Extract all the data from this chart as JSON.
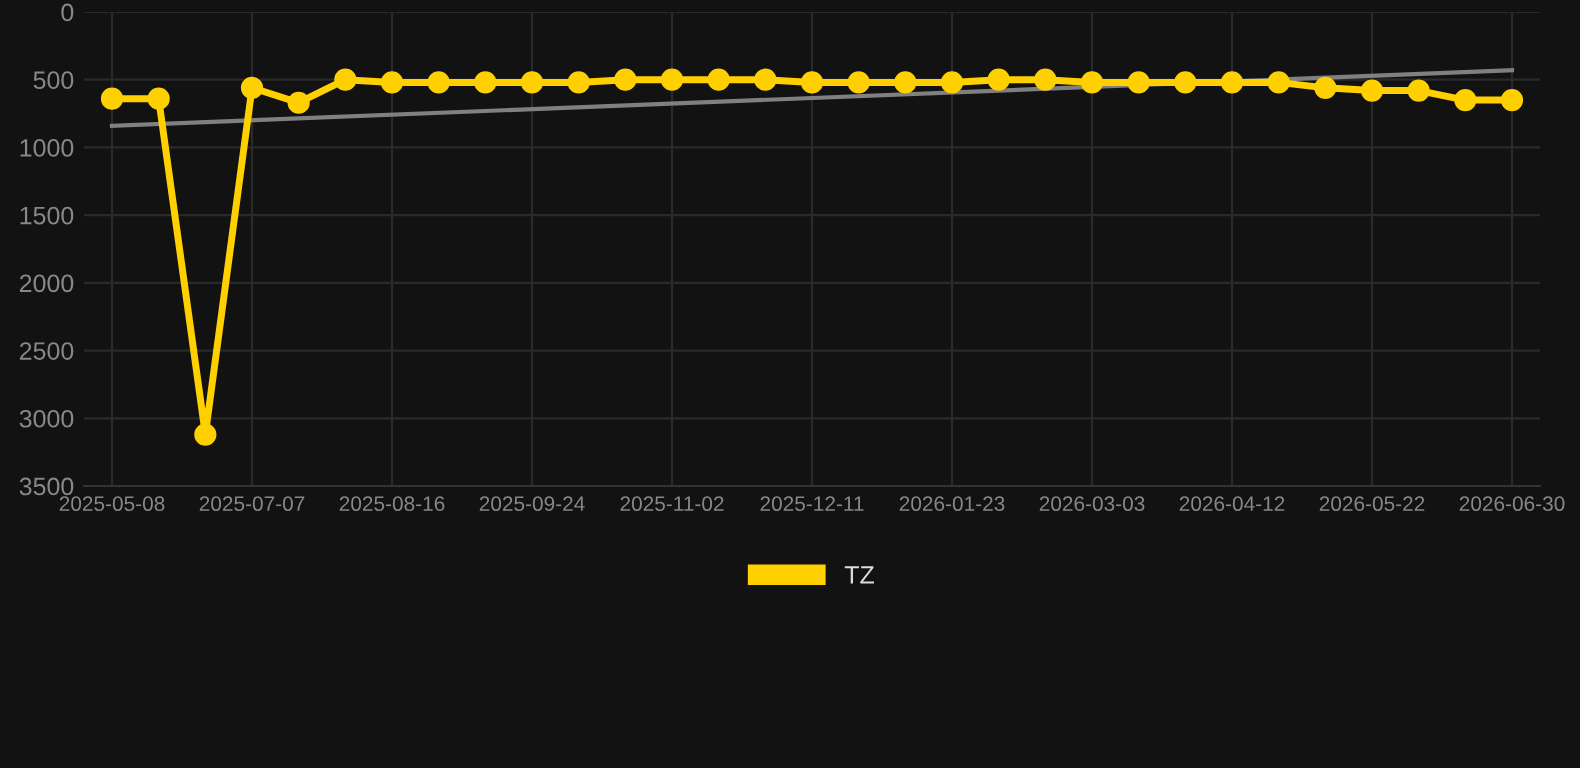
{
  "chart_data": {
    "type": "line",
    "categories": [
      "2025-05-08",
      null,
      null,
      "2025-07-07",
      null,
      null,
      "2025-08-16",
      null,
      null,
      "2025-09-24",
      null,
      null,
      "2025-11-02",
      null,
      null,
      "2025-12-11",
      null,
      null,
      "2026-01-23",
      null,
      null,
      "2026-03-03",
      null,
      null,
      "2026-04-12",
      null,
      null,
      "2026-05-22",
      null,
      null,
      "2026-06-30"
    ],
    "series": [
      {
        "name": "TZ",
        "color": "#ffd000",
        "marker": "circle",
        "values": [
          640,
          640,
          3120,
          560,
          670,
          500,
          520,
          520,
          520,
          520,
          520,
          500,
          500,
          500,
          500,
          520,
          520,
          520,
          520,
          500,
          500,
          520,
          520,
          520,
          520,
          520,
          560,
          580,
          580,
          650,
          650
        ]
      },
      {
        "type": "line",
        "color": "#808080",
        "marker": "none",
        "values": [
          840,
          null,
          null,
          null,
          null,
          null,
          null,
          null,
          null,
          null,
          null,
          null,
          null,
          null,
          null,
          null,
          null,
          null,
          null,
          null,
          null,
          null,
          null,
          null,
          null,
          null,
          null,
          null,
          null,
          null,
          430
        ]
      }
    ],
    "ylim": [
      3500,
      0
    ],
    "yticks": [
      0,
      500,
      1000,
      1500,
      2000,
      2500,
      3000,
      3500
    ],
    "grid": true,
    "legend": "bottom"
  }
}
